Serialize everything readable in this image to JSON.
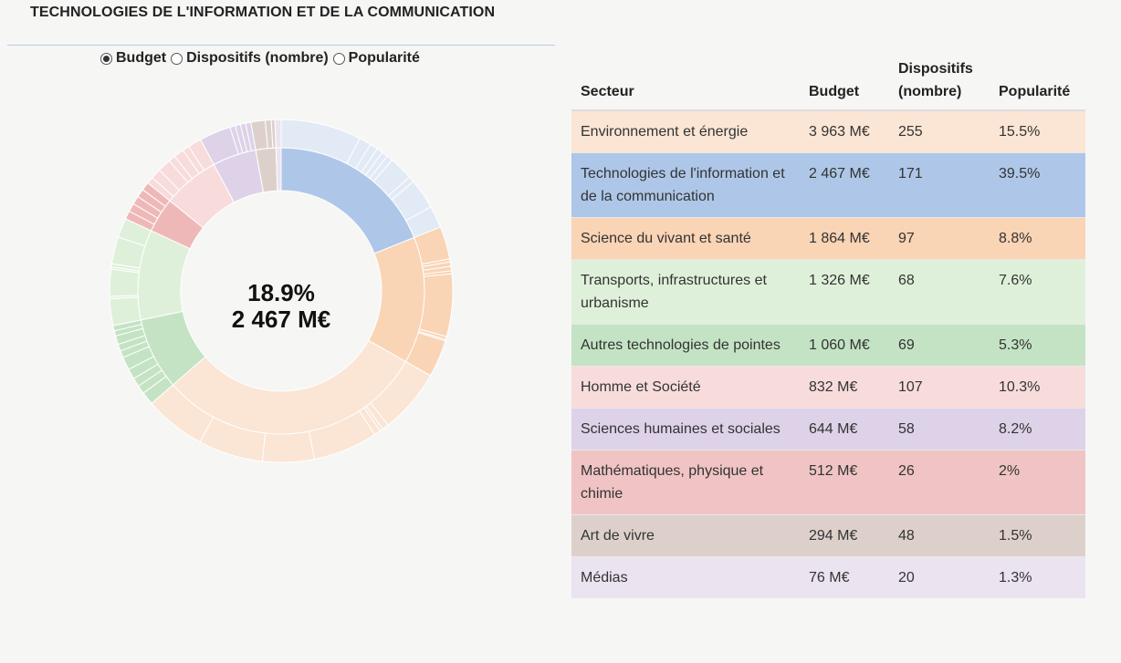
{
  "title": "TECHNOLOGIES DE L'INFORMATION ET DE LA COMMUNICATION",
  "radios": [
    {
      "label": "Budget",
      "checked": true
    },
    {
      "label": "Dispositifs (nombre)",
      "checked": false
    },
    {
      "label": "Popularité",
      "checked": false
    }
  ],
  "center": {
    "percent": "18.9%",
    "value": "2 467 M€"
  },
  "table": {
    "headers": {
      "sector": "Secteur",
      "budget": "Budget",
      "devices": "Dispositifs (nombre)",
      "popularity": "Popularité"
    },
    "rows": [
      {
        "sector": "Environnement et énergie",
        "budget": "3 963 M€",
        "devices": "255",
        "popularity": "15.5%",
        "color": "#fbe5d4"
      },
      {
        "sector": "Technologies de l'information et de la communication",
        "budget": "2 467 M€",
        "devices": "171",
        "popularity": "39.5%",
        "color": "#aec7e8"
      },
      {
        "sector": "Science du vivant et santé",
        "budget": "1 864 M€",
        "devices": "97",
        "popularity": "8.8%",
        "color": "#f9d4b5"
      },
      {
        "sector": "Transports, infrastructures et urbanisme",
        "budget": "1 326 M€",
        "devices": "68",
        "popularity": "7.6%",
        "color": "#dff0da"
      },
      {
        "sector": "Autres technologies de pointes",
        "budget": "1 060 M€",
        "devices": "69",
        "popularity": "5.3%",
        "color": "#c4e3c4"
      },
      {
        "sector": "Homme et Société",
        "budget": "832 M€",
        "devices": "107",
        "popularity": "10.3%",
        "color": "#f8dcdc"
      },
      {
        "sector": "Sciences humaines et sociales",
        "budget": "644 M€",
        "devices": "58",
        "popularity": "8.2%",
        "color": "#ded2e8"
      },
      {
        "sector": "Mathématiques, physique et chimie",
        "budget": "512 M€",
        "devices": "26",
        "popularity": "2%",
        "color": "#f0c4c4"
      },
      {
        "sector": "Art de vivre",
        "budget": "294 M€",
        "devices": "48",
        "popularity": "1.5%",
        "color": "#ddd0cb"
      },
      {
        "sector": "Médias",
        "budget": "76 M€",
        "devices": "20",
        "popularity": "1.3%",
        "color": "#ebe3f0"
      }
    ]
  },
  "chart_data": {
    "type": "sunburst",
    "measure": "Budget (M€)",
    "selected": "Technologies de l'information et de la communication",
    "inner_ring": [
      {
        "name": "Technologies de l'information et de la communication",
        "value": 2467,
        "color": "#aec7e8",
        "outer_color": "#e2eaf5",
        "sub": [
          40,
          6,
          4,
          3,
          3,
          3,
          12,
          3,
          15,
          11
        ]
      },
      {
        "name": "Science du vivant et santé",
        "value": 1864,
        "color": "#f9d4b5",
        "outer_color": "#f9d4b5",
        "sub": [
          22,
          2,
          3,
          3,
          2,
          42,
          2,
          1,
          25
        ]
      },
      {
        "name": "Environnement et énergie",
        "value": 3963,
        "color": "#fbe5d4",
        "outer_color": "#fbe5d4",
        "sub": [
          20,
          2,
          1,
          2,
          20,
          16,
          20,
          19
        ]
      },
      {
        "name": "Autres technologies de pointes",
        "value": 1060,
        "color": "#c4e3c4",
        "outer_color": "#c4e3c4",
        "sub": [
          15,
          10,
          10,
          12,
          15,
          8,
          8,
          10,
          6,
          6
        ]
      },
      {
        "name": "Transports, infrastructures et urbanisme",
        "value": 1326,
        "color": "#dff0da",
        "outer_color": "#dff0da",
        "sub": [
          25,
          2,
          25,
          2,
          3,
          25,
          18
        ]
      },
      {
        "name": "Mathématiques, physique et chimie",
        "value": 512,
        "color": "#efb8b8",
        "outer_color": "#efb8b8",
        "sub": [
          20,
          20,
          20,
          20,
          20
        ]
      },
      {
        "name": "Homme et Société",
        "value": 832,
        "color": "#f8dcdc",
        "outer_color": "#f8dcdc",
        "sub": [
          10,
          15,
          20,
          10,
          15,
          10,
          20
        ]
      },
      {
        "name": "Sciences humaines et sociales",
        "value": 644,
        "color": "#ded2e8",
        "outer_color": "#ded2e8",
        "sub": [
          60,
          10,
          10,
          10,
          10
        ]
      },
      {
        "name": "Art de vivre",
        "value": 294,
        "color": "#ddd0cb",
        "outer_color": "#ddd0cb",
        "sub": [
          60,
          25,
          15
        ]
      },
      {
        "name": "Médias",
        "value": 76,
        "color": "#ebe3f0",
        "outer_color": "#ebe3f0",
        "sub": [
          100
        ]
      }
    ]
  }
}
